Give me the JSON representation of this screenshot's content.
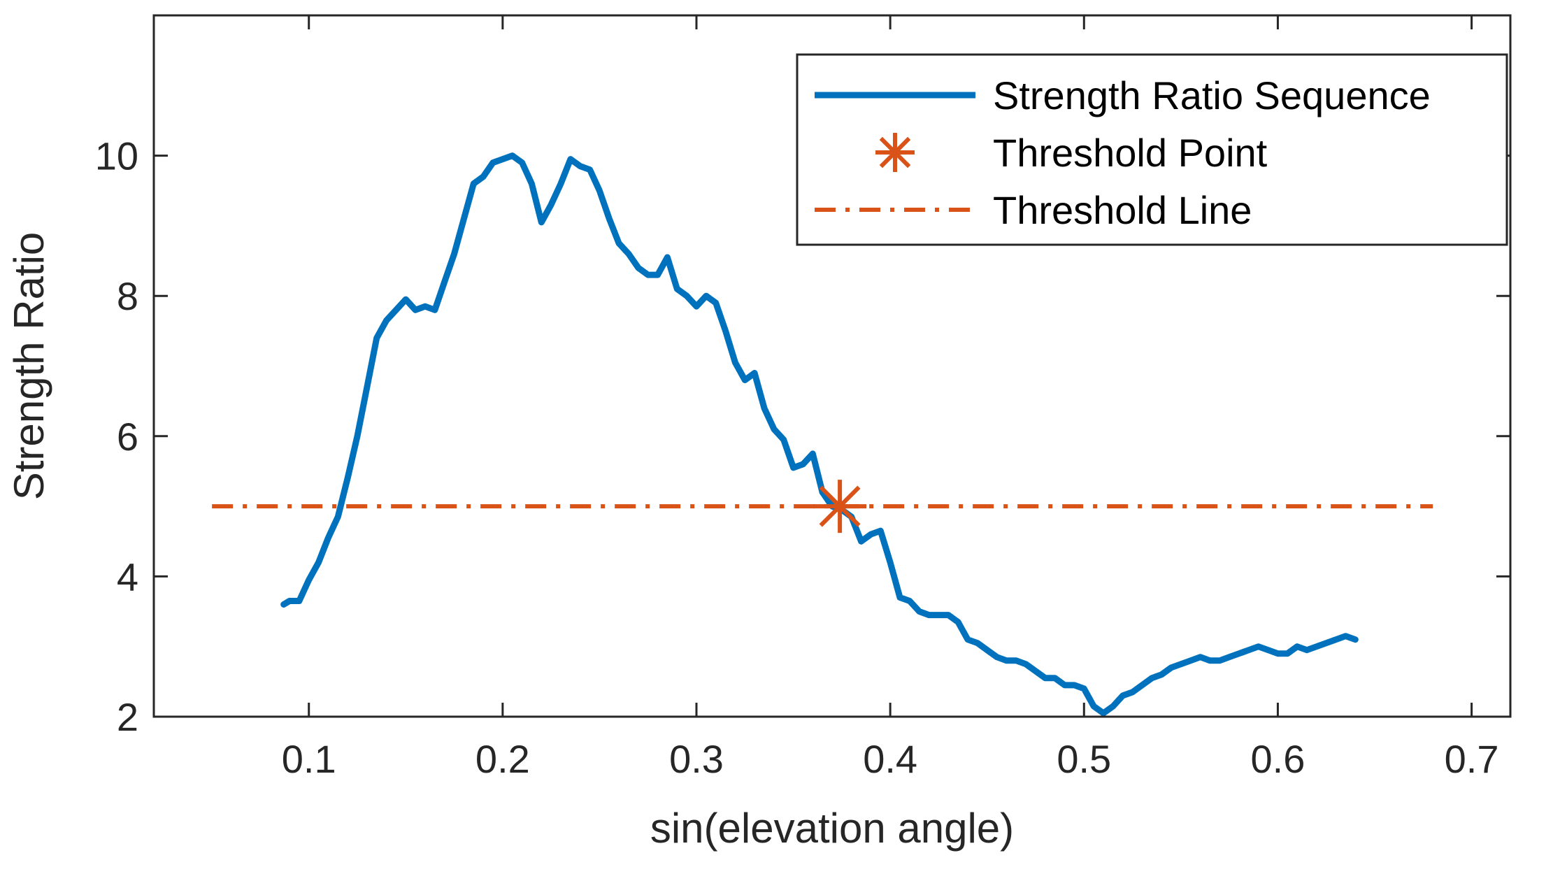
{
  "colors": {
    "series": "#0072BD",
    "threshold": "#D95319",
    "axis": "#262626",
    "legend_border": "#262626"
  },
  "chart_data": {
    "type": "line",
    "xlabel": "sin(elevation angle)",
    "ylabel": "Strength Ratio",
    "xlim": [
      0.02,
      0.72
    ],
    "ylim": [
      2,
      12
    ],
    "xticks": [
      0.1,
      0.2,
      0.3,
      0.4,
      0.5,
      0.6,
      0.7
    ],
    "xtick_labels": [
      "0.1",
      "0.2",
      "0.3",
      "0.4",
      "0.5",
      "0.6",
      "0.7"
    ],
    "yticks": [
      2,
      4,
      6,
      8,
      10
    ],
    "ytick_labels": [
      "2",
      "4",
      "6",
      "8",
      "10"
    ],
    "legend_position": "top-right",
    "series": [
      {
        "name": "Strength Ratio Sequence",
        "style": "solid",
        "x": [
          0.087,
          0.09,
          0.095,
          0.1,
          0.105,
          0.11,
          0.115,
          0.12,
          0.125,
          0.13,
          0.135,
          0.14,
          0.145,
          0.15,
          0.155,
          0.16,
          0.165,
          0.17,
          0.175,
          0.18,
          0.185,
          0.19,
          0.195,
          0.2,
          0.205,
          0.21,
          0.215,
          0.22,
          0.225,
          0.23,
          0.235,
          0.24,
          0.245,
          0.25,
          0.255,
          0.26,
          0.265,
          0.27,
          0.275,
          0.28,
          0.285,
          0.29,
          0.295,
          0.3,
          0.305,
          0.31,
          0.315,
          0.32,
          0.325,
          0.33,
          0.335,
          0.34,
          0.345,
          0.35,
          0.355,
          0.36,
          0.365,
          0.37,
          0.375,
          0.38,
          0.385,
          0.39,
          0.395,
          0.4,
          0.405,
          0.41,
          0.415,
          0.42,
          0.425,
          0.43,
          0.435,
          0.44,
          0.445,
          0.45,
          0.455,
          0.46,
          0.465,
          0.47,
          0.475,
          0.48,
          0.485,
          0.49,
          0.495,
          0.5,
          0.505,
          0.51,
          0.515,
          0.52,
          0.525,
          0.53,
          0.535,
          0.54,
          0.545,
          0.55,
          0.555,
          0.56,
          0.565,
          0.57,
          0.575,
          0.58,
          0.585,
          0.59,
          0.595,
          0.6,
          0.605,
          0.61,
          0.615,
          0.62,
          0.625,
          0.63,
          0.635,
          0.64
        ],
        "y": [
          3.6,
          3.65,
          3.65,
          3.95,
          4.2,
          4.55,
          4.85,
          5.4,
          6.0,
          6.7,
          7.4,
          7.65,
          7.8,
          7.95,
          7.8,
          7.85,
          7.8,
          8.2,
          8.6,
          9.1,
          9.6,
          9.7,
          9.9,
          9.95,
          10.0,
          9.9,
          9.6,
          9.05,
          9.3,
          9.6,
          9.95,
          9.85,
          9.8,
          9.5,
          9.1,
          8.75,
          8.6,
          8.4,
          8.3,
          8.3,
          8.55,
          8.1,
          8.0,
          7.85,
          8.0,
          7.9,
          7.5,
          7.05,
          6.8,
          6.9,
          6.4,
          6.1,
          5.95,
          5.55,
          5.6,
          5.75,
          5.2,
          5.0,
          4.95,
          4.85,
          4.5,
          4.6,
          4.65,
          4.2,
          3.7,
          3.65,
          3.5,
          3.45,
          3.45,
          3.45,
          3.35,
          3.1,
          3.05,
          2.95,
          2.85,
          2.8,
          2.8,
          2.75,
          2.65,
          2.55,
          2.55,
          2.45,
          2.45,
          2.4,
          2.15,
          2.05,
          2.15,
          2.3,
          2.35,
          2.45,
          2.55,
          2.6,
          2.7,
          2.75,
          2.8,
          2.85,
          2.8,
          2.8,
          2.85,
          2.9,
          2.95,
          3.0,
          2.95,
          2.9,
          2.9,
          3.0,
          2.95,
          3.0,
          3.05,
          3.1,
          3.15,
          3.1
        ]
      },
      {
        "name": "Threshold Point",
        "style": "marker-asterisk",
        "x": [
          0.374
        ],
        "y": [
          5.0
        ]
      },
      {
        "name": "Threshold Line",
        "style": "dash-dot",
        "x": [
          0.05,
          0.68
        ],
        "y": [
          5.0,
          5.0
        ]
      }
    ]
  }
}
